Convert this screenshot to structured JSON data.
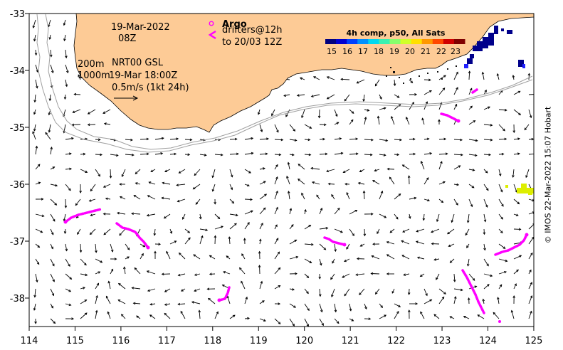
{
  "map": {
    "lon_range": [
      114,
      125
    ],
    "lat_range": [
      -38.5,
      -33
    ],
    "x_ticks": [
      "114",
      "115",
      "116",
      "117",
      "118",
      "119",
      "120",
      "121",
      "122",
      "123",
      "124",
      "125"
    ],
    "y_ticks": [
      "-33",
      "-34",
      "-35",
      "-36",
      "-37",
      "-38"
    ]
  },
  "annotations": {
    "date": "19-Mar-2022",
    "hour": "08Z",
    "depth_200": "200m",
    "depth_1000": "1000m",
    "product": "NRT00 GSL",
    "product_time": "19-Mar 18:00Z",
    "scale_label": "0.5m/s (1kt 24h)"
  },
  "legend": {
    "argo_label": "Argo",
    "drifters_label": "drifters@12h",
    "drifters_to": "to 20/03 12Z",
    "colorbar_title": "4h comp, p50, All Sats",
    "colorbar_ticks": [
      "15",
      "16",
      "17",
      "18",
      "19",
      "20",
      "21",
      "22",
      "23"
    ],
    "colorbar_colors": [
      "#00007f",
      "#0000d0",
      "#0040ff",
      "#0090ff",
      "#00d8f0",
      "#3cf0b0",
      "#88ff6c",
      "#d0ff28",
      "#ffe000",
      "#ff9800",
      "#ff4800",
      "#d00000",
      "#7f0000"
    ]
  },
  "credit": "© IMOS 22-Mar-2022 15:07 Hobart",
  "colors": {
    "land": "#fdcb96",
    "drifter": "#ff00ff",
    "argo": "#ff00ff",
    "bathymetry": "#a0a0a0",
    "sst_warm": "#ddee00",
    "sst_cold": "#00008b"
  }
}
